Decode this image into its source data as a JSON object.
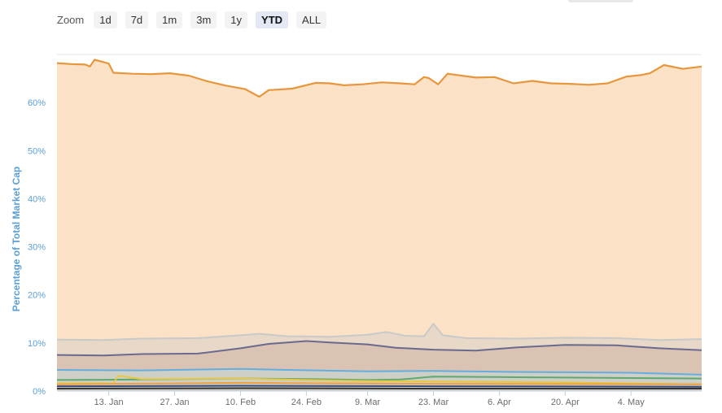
{
  "zoom": {
    "label": "Zoom",
    "options": [
      "1d",
      "7d",
      "1m",
      "3m",
      "1y",
      "YTD",
      "ALL"
    ],
    "selected": "YTD"
  },
  "chart_data": {
    "type": "area",
    "ylabel": "Percentage of Total Market Cap",
    "ylim": [
      0,
      70
    ],
    "yticks": [
      0,
      10,
      20,
      30,
      40,
      50,
      60
    ],
    "ytick_labels": [
      "0%",
      "10%",
      "20%",
      "30%",
      "40%",
      "50%",
      "60%"
    ],
    "xlim": [
      "Jan 2",
      "May 19"
    ],
    "xticks": [
      "13. Jan",
      "27. Jan",
      "10. Feb",
      "24. Feb",
      "9. Mar",
      "23. Mar",
      "6. Apr",
      "20. Apr",
      "4. May"
    ],
    "xtick_dates": [
      "Jan 13",
      "Jan 27",
      "Feb 10",
      "Feb 24",
      "Mar 9",
      "Mar 23",
      "Apr 6",
      "Apr 20",
      "May 4"
    ],
    "stacked": false,
    "grid": true,
    "colors": {
      "bitcoin": "#e8963c",
      "bitcoin_fill": "#fbe2c6",
      "gray": "#c9c9c9",
      "purple": "#6a6a8e",
      "purple_fill": "#d8c0b0",
      "blue": "#63aee0",
      "green": "#5fa870",
      "yellow": "#e8c840",
      "orange": "#f0a040",
      "navy": "#3a4a7a",
      "black": "#333333"
    },
    "series": [
      {
        "key": "bitcoin",
        "x": [
          "Jan 2",
          "Jan 5",
          "Jan 8",
          "Jan 9",
          "Jan 10",
          "Jan 12",
          "Jan 13",
          "Jan 14",
          "Jan 18",
          "Jan 22",
          "Jan 26",
          "Jan 30",
          "Feb 3",
          "Feb 7",
          "Feb 11",
          "Feb 14",
          "Feb 16",
          "Feb 18",
          "Feb 21",
          "Feb 26",
          "Mar 1",
          "Mar 4",
          "Mar 8",
          "Mar 12",
          "Mar 16",
          "Mar 19",
          "Mar 21",
          "Mar 22",
          "Mar 24",
          "Mar 26",
          "Apr 1",
          "Apr 5",
          "Apr 9",
          "Apr 13",
          "Apr 17",
          "Apr 21",
          "Apr 25",
          "Apr 29",
          "May 3",
          "May 6",
          "May 8",
          "May 11",
          "May 15",
          "May 19"
        ],
        "y": [
          68.2,
          68.0,
          67.9,
          67.5,
          68.9,
          68.4,
          68.1,
          66.2,
          66.0,
          65.9,
          66.1,
          65.6,
          64.4,
          63.5,
          62.8,
          61.2,
          62.6,
          62.7,
          62.9,
          64.1,
          64.0,
          63.6,
          63.8,
          64.2,
          64.0,
          63.8,
          65.3,
          65.1,
          63.8,
          66.0,
          65.2,
          65.3,
          64.0,
          64.5,
          64.0,
          63.9,
          63.7,
          64.0,
          65.4,
          65.7,
          66.1,
          67.8,
          67.0,
          67.5
        ]
      },
      {
        "key": "gray",
        "x": [
          "Jan 2",
          "Jan 12",
          "Jan 20",
          "Feb 1",
          "Feb 10",
          "Feb 14",
          "Feb 20",
          "Mar 1",
          "Mar 9",
          "Mar 13",
          "Mar 17",
          "Mar 21",
          "Mar 23",
          "Mar 25",
          "Mar 30",
          "Apr 10",
          "Apr 20",
          "May 1",
          "May 10",
          "May 19"
        ],
        "y": [
          10.7,
          10.6,
          10.9,
          11.0,
          11.6,
          11.9,
          11.4,
          11.3,
          11.7,
          12.3,
          11.5,
          11.4,
          14.0,
          11.6,
          11.0,
          10.9,
          11.1,
          11.0,
          10.6,
          10.8
        ]
      },
      {
        "key": "purple",
        "x": [
          "Jan 2",
          "Jan 12",
          "Jan 20",
          "Feb 1",
          "Feb 10",
          "Feb 16",
          "Feb 24",
          "Mar 1",
          "Mar 9",
          "Mar 15",
          "Mar 23",
          "Apr 1",
          "Apr 10",
          "Apr 20",
          "May 1",
          "May 10",
          "May 19"
        ],
        "y": [
          7.5,
          7.4,
          7.7,
          7.8,
          8.9,
          9.8,
          10.4,
          10.1,
          9.7,
          9.0,
          8.6,
          8.4,
          9.1,
          9.6,
          9.5,
          8.9,
          8.5
        ]
      },
      {
        "key": "blue",
        "x": [
          "Jan 2",
          "Jan 20",
          "Feb 10",
          "Feb 20",
          "Mar 9",
          "Mar 23",
          "Apr 6",
          "Apr 20",
          "May 4",
          "May 19"
        ],
        "y": [
          4.4,
          4.3,
          4.6,
          4.4,
          4.1,
          4.2,
          4.0,
          3.9,
          3.8,
          3.4
        ]
      },
      {
        "key": "green",
        "x": [
          "Jan 2",
          "Jan 20",
          "Feb 10",
          "Feb 24",
          "Mar 9",
          "Mar 16",
          "Mar 23",
          "Apr 6",
          "Apr 20",
          "May 4",
          "May 19"
        ],
        "y": [
          2.3,
          2.4,
          2.6,
          2.5,
          2.3,
          2.4,
          3.0,
          2.9,
          2.8,
          2.7,
          2.6
        ]
      },
      {
        "key": "yellow",
        "x": [
          "Jan 2",
          "Jan 14",
          "Jan 15",
          "Jan 20",
          "Feb 10",
          "Feb 24",
          "Mar 9",
          "Mar 23",
          "Apr 6",
          "Apr 20",
          "May 4",
          "May 19"
        ],
        "y": [
          1.6,
          1.6,
          3.2,
          2.5,
          2.6,
          2.3,
          2.1,
          2.0,
          1.9,
          1.8,
          1.6,
          1.4
        ]
      },
      {
        "key": "orange",
        "x": [
          "Jan 2",
          "Feb 10",
          "Mar 23",
          "May 19"
        ],
        "y": [
          1.4,
          1.7,
          1.5,
          1.4
        ]
      },
      {
        "key": "navy",
        "x": [
          "Jan 2",
          "Feb 10",
          "Mar 23",
          "May 19"
        ],
        "y": [
          1.0,
          1.1,
          1.0,
          0.9
        ]
      },
      {
        "key": "black",
        "x": [
          "Jan 2",
          "Feb 10",
          "Mar 23",
          "May 19"
        ],
        "y": [
          0.5,
          0.6,
          0.5,
          0.5
        ]
      }
    ]
  }
}
